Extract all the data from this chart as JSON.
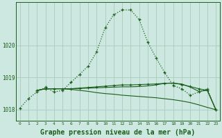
{
  "background_color": "#cce8e0",
  "grid_color": "#aaccbb",
  "line_color": "#1a5c1a",
  "xlabel": "Graphe pression niveau de la mer (hPa)",
  "xlabel_fontsize": 7,
  "xticks": [
    0,
    1,
    2,
    3,
    4,
    5,
    6,
    7,
    8,
    9,
    10,
    11,
    12,
    13,
    14,
    15,
    16,
    17,
    18,
    19,
    20,
    21,
    22,
    23
  ],
  "yticks": [
    1018,
    1019,
    1020
  ],
  "ylim": [
    1017.65,
    1021.35
  ],
  "xlim": [
    -0.5,
    23.5
  ],
  "curve1_x": [
    0,
    1,
    2,
    3,
    4,
    5,
    6,
    7,
    8,
    9,
    10,
    11,
    12,
    13,
    14,
    15,
    16,
    17,
    18,
    19,
    20,
    21,
    22,
    23
  ],
  "curve1_y": [
    1018.05,
    1018.35,
    1018.55,
    1018.7,
    1018.55,
    1018.6,
    1018.85,
    1019.1,
    1019.35,
    1019.8,
    1020.55,
    1020.95,
    1021.1,
    1021.1,
    1020.8,
    1020.1,
    1019.6,
    1019.15,
    1018.75,
    1018.65,
    1018.45,
    1018.55,
    1018.65,
    1018.0
  ],
  "curve2_x": [
    2,
    3,
    4,
    5,
    6,
    7,
    8,
    9,
    10,
    11,
    12,
    13,
    14,
    15,
    16,
    17,
    18,
    19,
    20,
    21,
    22,
    23
  ],
  "curve2_y": [
    1018.6,
    1018.65,
    1018.65,
    1018.65,
    1018.63,
    1018.6,
    1018.57,
    1018.53,
    1018.5,
    1018.48,
    1018.45,
    1018.43,
    1018.41,
    1018.39,
    1018.37,
    1018.34,
    1018.31,
    1018.27,
    1018.22,
    1018.15,
    1018.07,
    1018.0
  ],
  "curve3_x": [
    2,
    3,
    4,
    5,
    6,
    7,
    8,
    9,
    10,
    11,
    12,
    13,
    14,
    15,
    16,
    17,
    18,
    19,
    20,
    21,
    22,
    23
  ],
  "curve3_y": [
    1018.6,
    1018.65,
    1018.65,
    1018.65,
    1018.65,
    1018.67,
    1018.69,
    1018.71,
    1018.73,
    1018.75,
    1018.77,
    1018.77,
    1018.78,
    1018.79,
    1018.8,
    1018.82,
    1018.83,
    1018.78,
    1018.72,
    1018.65,
    1018.6,
    1018.0
  ],
  "curve4_x": [
    2,
    3,
    4,
    5,
    6,
    7,
    8,
    9,
    10,
    11,
    12,
    13,
    14,
    15,
    16,
    17,
    18,
    19,
    20,
    21,
    22,
    23
  ],
  "curve4_y": [
    1018.6,
    1018.65,
    1018.65,
    1018.65,
    1018.65,
    1018.66,
    1018.67,
    1018.68,
    1018.69,
    1018.7,
    1018.71,
    1018.71,
    1018.72,
    1018.74,
    1018.77,
    1018.82,
    1018.82,
    1018.8,
    1018.7,
    1018.57,
    1018.6,
    1018.0
  ]
}
